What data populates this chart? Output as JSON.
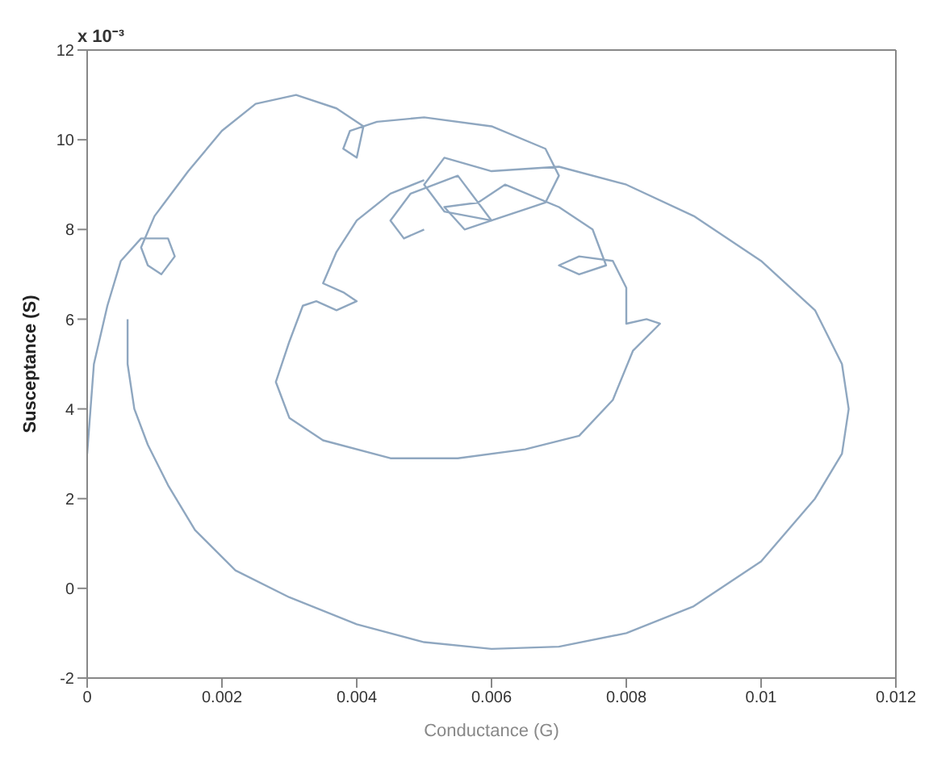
{
  "chart_data": {
    "type": "line",
    "xlabel": "Conductance (G)",
    "ylabel": "Susceptance (S)",
    "annotations": [
      "x 10⁻³"
    ],
    "xlim": [
      0,
      0.012
    ],
    "xticks": [
      0,
      0.002,
      0.004,
      0.006,
      0.008,
      0.01,
      0.012
    ],
    "ylim": [
      -2,
      12
    ],
    "yticks": [
      -2,
      0,
      2,
      4,
      6,
      8,
      10,
      12
    ],
    "grid": false,
    "marker": "none",
    "line_style": "solid",
    "series": [
      {
        "color": "#8fa7c0",
        "x": [
          0,
          0.0001,
          0.0003,
          0.0005,
          0.0008,
          0.0012,
          0.0013,
          0.0011,
          0.0009,
          0.0008,
          0.001,
          0.0015,
          0.002,
          0.0025,
          0.0031,
          0.0037,
          0.0041,
          0.004,
          0.0038,
          0.0039,
          0.0043,
          0.005,
          0.006,
          0.0068,
          0.007,
          0.0068,
          0.006,
          0.0053,
          0.005,
          0.0053,
          0.006,
          0.007,
          0.008,
          0.009,
          0.01,
          0.0108,
          0.0112,
          0.0113,
          0.0112,
          0.0108,
          0.01,
          0.009,
          0.008,
          0.007,
          0.006,
          0.005,
          0.004,
          0.003,
          0.0022,
          0.0016,
          0.0012,
          0.0009,
          0.0007,
          0.0006,
          0.0006
        ],
        "values": [
          3,
          5,
          6.3,
          7.3,
          7.8,
          7.8,
          7.4,
          7,
          7.2,
          7.6,
          8.3,
          9.3,
          10.2,
          10.8,
          11,
          10.7,
          10.3,
          9.6,
          9.8,
          10.2,
          10.4,
          10.5,
          10.3,
          9.8,
          9.2,
          8.6,
          8.2,
          8.4,
          9,
          9.6,
          9.3,
          9.4,
          9,
          8.3,
          7.3,
          6.2,
          5,
          4,
          3,
          2,
          0.6,
          -0.4,
          -1,
          -1.3,
          -1.35,
          -1.2,
          -0.8,
          -0.2,
          0.4,
          1.3,
          2.3,
          3.2,
          4,
          5,
          6
        ]
      },
      {
        "color": "#8fa7c0",
        "x": [
          0.005,
          0.0045,
          0.004,
          0.0037,
          0.0035,
          0.0038,
          0.004,
          0.0037,
          0.0034,
          0.0032,
          0.003,
          0.0028,
          0.003,
          0.0035,
          0.0045,
          0.0055,
          0.0065,
          0.0073,
          0.0078,
          0.0081,
          0.0085,
          0.0083,
          0.008,
          0.008,
          0.0078,
          0.0073,
          0.007,
          0.0073,
          0.0077,
          0.0075,
          0.007,
          0.0062,
          0.0058,
          0.0053,
          0.0056,
          0.006,
          0.0055,
          0.0048,
          0.0045,
          0.0047,
          0.005
        ],
        "values": [
          9.1,
          8.8,
          8.2,
          7.5,
          6.8,
          6.6,
          6.4,
          6.2,
          6.4,
          6.3,
          5.5,
          4.6,
          3.8,
          3.3,
          2.9,
          2.9,
          3.1,
          3.4,
          4.2,
          5.3,
          5.9,
          6,
          5.9,
          6.7,
          7.3,
          7.4,
          7.2,
          7,
          7.2,
          8,
          8.5,
          9,
          8.6,
          8.5,
          8,
          8.2,
          9.2,
          8.8,
          8.2,
          7.8,
          8
        ]
      }
    ]
  }
}
